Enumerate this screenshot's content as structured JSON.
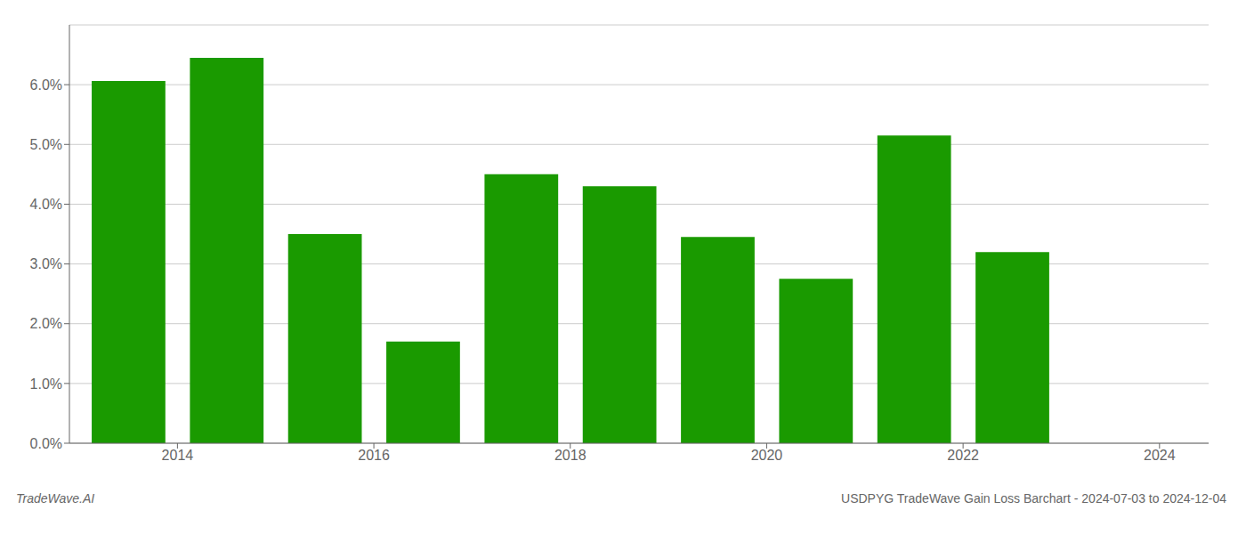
{
  "chart_data": {
    "type": "bar",
    "x": [
      2013.5,
      2014.5,
      2015.5,
      2016.5,
      2017.5,
      2018.5,
      2019.5,
      2020.5,
      2021.5,
      2022.5
    ],
    "values": [
      0.0606,
      0.0645,
      0.035,
      0.017,
      0.045,
      0.043,
      0.0345,
      0.0275,
      0.0515,
      0.032
    ],
    "color": "#1a9a00",
    "xlim": [
      2012.9,
      2024.5
    ],
    "xticks": [
      2014,
      2016,
      2018,
      2020,
      2022,
      2024
    ],
    "ylim": [
      0,
      0.07
    ],
    "yticks": [
      {
        "value": 0.0,
        "label": "0.0%"
      },
      {
        "value": 0.01,
        "label": "1.0%"
      },
      {
        "value": 0.02,
        "label": "2.0%"
      },
      {
        "value": 0.03,
        "label": "3.0%"
      },
      {
        "value": 0.04,
        "label": "4.0%"
      },
      {
        "value": 0.05,
        "label": "5.0%"
      },
      {
        "value": 0.06,
        "label": "6.0%"
      }
    ],
    "grid": true,
    "annotations": [
      "TradeWave.AI",
      "USDPYG TradeWave Gain Loss Barchart - 2024-07-03 to 2024-12-04"
    ]
  }
}
